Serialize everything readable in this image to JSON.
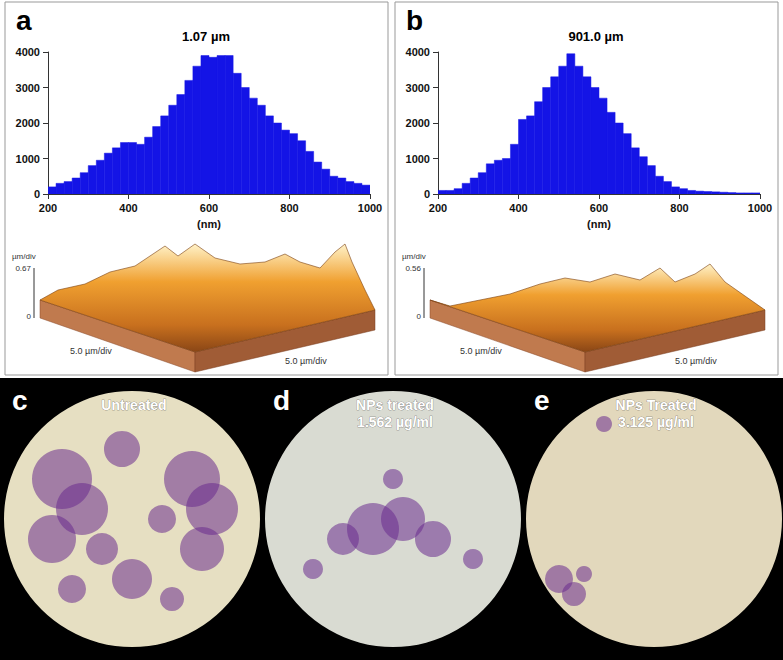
{
  "chart_data": [
    {
      "type": "histogram",
      "panel": "a",
      "title": "1.07 µm",
      "xlabel": "(nm)",
      "bins": [
        200,
        220,
        240,
        260,
        280,
        300,
        320,
        340,
        360,
        380,
        400,
        420,
        440,
        460,
        480,
        500,
        520,
        540,
        560,
        580,
        600,
        620,
        640,
        660,
        680,
        700,
        720,
        740,
        760,
        780,
        800,
        820,
        840,
        860,
        880,
        900,
        920,
        940,
        960,
        980,
        1000
      ],
      "values": [
        200,
        300,
        350,
        450,
        600,
        800,
        950,
        1150,
        1300,
        1450,
        1450,
        1400,
        1600,
        1900,
        2200,
        2500,
        2800,
        3200,
        3600,
        3900,
        3850,
        3900,
        3900,
        3400,
        3000,
        2700,
        2500,
        2200,
        2000,
        1800,
        1700,
        1500,
        1200,
        900,
        700,
        500,
        450,
        350,
        300,
        250
      ],
      "color": "#1414e6",
      "xlim": [
        200,
        1000
      ],
      "xticks": [
        200,
        400,
        600,
        800,
        1000
      ],
      "ylim": [
        0,
        4000
      ],
      "yticks": [
        0,
        1000,
        2000,
        3000,
        4000
      ],
      "grid": false,
      "surface": {
        "z_unit": "µm/div",
        "z_max": 0.67,
        "z_min": 0,
        "x_label": "5.0 µm/div",
        "y_label": "5.0 µm/div"
      }
    },
    {
      "type": "histogram",
      "panel": "b",
      "title": "901.0 µm",
      "xlabel": "(nm)",
      "bins": [
        200,
        220,
        240,
        260,
        280,
        300,
        320,
        340,
        360,
        380,
        400,
        420,
        440,
        460,
        480,
        500,
        520,
        540,
        560,
        580,
        600,
        620,
        640,
        660,
        680,
        700,
        720,
        740,
        760,
        780,
        800,
        820,
        840,
        860,
        880,
        900,
        920,
        940,
        960,
        980,
        1000
      ],
      "values": [
        100,
        100,
        150,
        300,
        450,
        600,
        850,
        950,
        1000,
        1400,
        2100,
        2200,
        2600,
        3000,
        3300,
        3600,
        3950,
        3600,
        3300,
        3000,
        2700,
        2300,
        2000,
        1700,
        1300,
        1050,
        800,
        500,
        350,
        200,
        150,
        100,
        80,
        70,
        60,
        50,
        40,
        30,
        30,
        30
      ],
      "color": "#1414e6",
      "xlim": [
        200,
        1000
      ],
      "xticks": [
        200,
        400,
        600,
        800,
        1000
      ],
      "ylim": [
        0,
        4000
      ],
      "yticks": [
        0,
        1000,
        2000,
        3000,
        4000
      ],
      "grid": false,
      "surface": {
        "z_unit": "µm/div",
        "z_max": 0.56,
        "z_min": 0,
        "x_label": "5.0 µm/div",
        "y_label": "5.0 µm/div"
      }
    }
  ],
  "images": [
    {
      "panel": "c",
      "label": [
        "Untreated"
      ]
    },
    {
      "panel": "d",
      "label": [
        "NPs treated",
        "1.562 µg/ml"
      ]
    },
    {
      "panel": "e",
      "label": [
        "NPs Treated",
        "3.125 µg/ml"
      ]
    }
  ]
}
